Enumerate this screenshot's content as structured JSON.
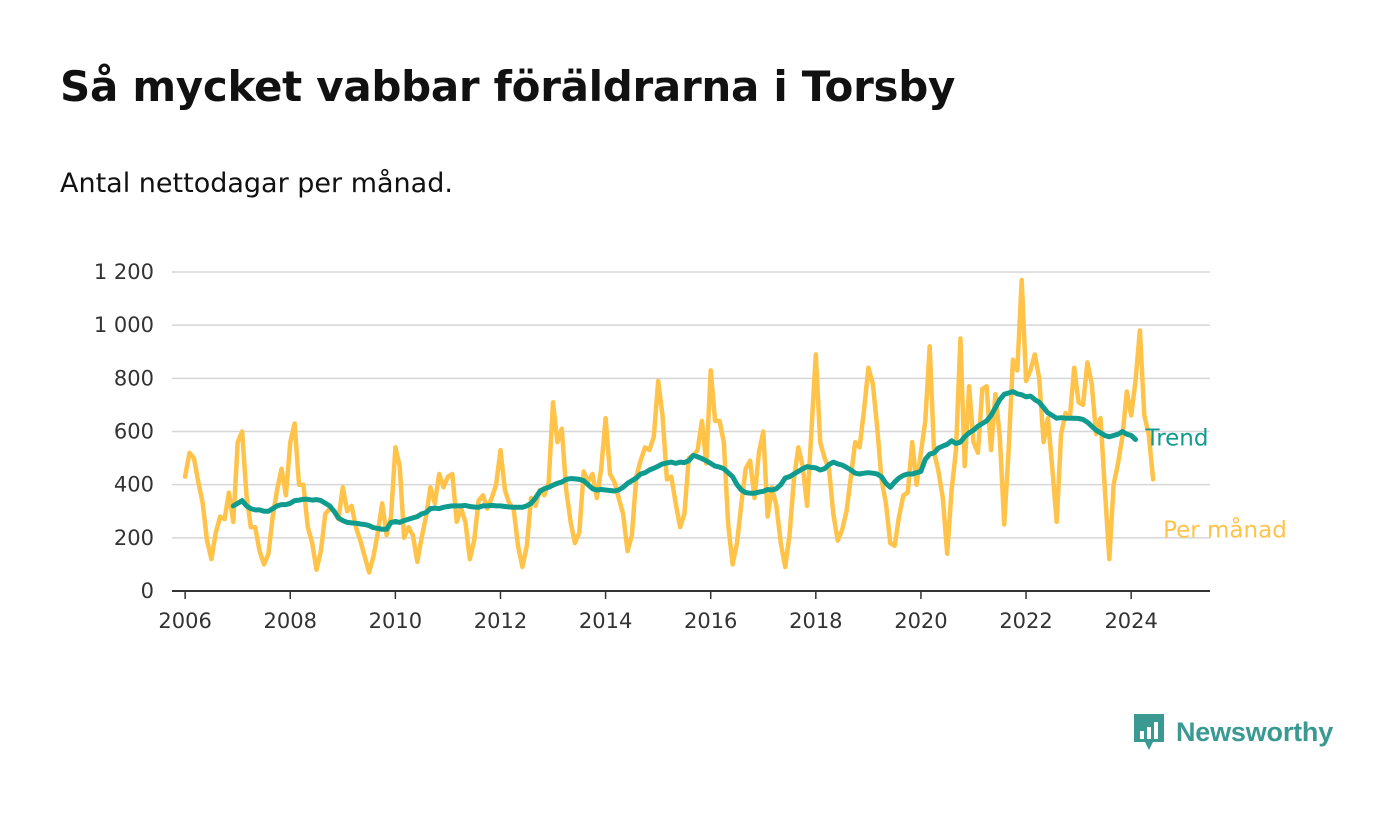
{
  "header": {
    "title": "Så mycket vabbar föräldrarna i Torsby",
    "subtitle": "Antal nettodagar per månad."
  },
  "brand": {
    "name": "Newsworthy",
    "icon": "newsworthy-logo-icon",
    "color": "#3a9a92"
  },
  "chart_data": {
    "type": "line",
    "title": "Så mycket vabbar föräldrarna i Torsby",
    "subtitle": "Antal nettodagar per månad.",
    "x_ticks": [
      "2006",
      "2008",
      "2010",
      "2012",
      "2014",
      "2016",
      "2018",
      "2020",
      "2022",
      "2024"
    ],
    "y_ticks": [
      "0",
      "200",
      "400",
      "600",
      "800",
      "1 000",
      "1 200"
    ],
    "xlim": [
      "2005-10",
      "2025-07"
    ],
    "ylim": [
      0,
      1200
    ],
    "grid": true,
    "legend": "direct labels at line ends",
    "series": [
      {
        "name": "Per månad",
        "color": "#ffc34a",
        "start": "2006-01",
        "values": [
          430,
          520,
          500,
          410,
          330,
          190,
          120,
          220,
          280,
          270,
          370,
          260,
          560,
          600,
          360,
          240,
          240,
          150,
          100,
          140,
          280,
          380,
          460,
          360,
          560,
          630,
          400,
          400,
          240,
          180,
          80,
          150,
          290,
          310,
          300,
          270,
          390,
          300,
          320,
          240,
          190,
          130,
          70,
          130,
          220,
          330,
          210,
          280,
          540,
          470,
          200,
          240,
          210,
          110,
          200,
          280,
          390,
          330,
          440,
          390,
          430,
          440,
          260,
          310,
          260,
          120,
          190,
          340,
          360,
          310,
          350,
          400,
          530,
          380,
          330,
          310,
          170,
          90,
          170,
          350,
          320,
          380,
          360,
          410,
          710,
          560,
          610,
          380,
          260,
          180,
          220,
          450,
          410,
          440,
          350,
          460,
          650,
          440,
          410,
          350,
          290,
          150,
          210,
          430,
          490,
          540,
          530,
          580,
          790,
          660,
          420,
          430,
          330,
          240,
          290,
          500,
          510,
          530,
          640,
          480,
          830,
          640,
          640,
          560,
          250,
          100,
          180,
          330,
          460,
          490,
          350,
          520,
          600,
          280,
          390,
          320,
          180,
          90,
          210,
          420,
          540,
          470,
          320,
          600,
          890,
          560,
          500,
          460,
          290,
          190,
          230,
          300,
          430,
          560,
          540,
          680,
          840,
          780,
          620,
          420,
          330,
          180,
          170,
          280,
          360,
          370,
          560,
          400,
          520,
          640,
          920,
          520,
          450,
          350,
          140,
          380,
          530,
          950,
          470,
          770,
          560,
          520,
          760,
          770,
          530,
          740,
          580,
          250,
          520,
          870,
          830,
          1170,
          790,
          830,
          890,
          800,
          560,
          650,
          460,
          260,
          590,
          670,
          650,
          840,
          710,
          700,
          860,
          780,
          590,
          650,
          380,
          120,
          400,
          480,
          580,
          750,
          660,
          790,
          980,
          660,
          590,
          420
        ]
      },
      {
        "name": "Trend",
        "color": "#0f9b8e",
        "start": "2006-12",
        "values": [
          320,
          330,
          340,
          320,
          310,
          305,
          305,
          300,
          300,
          310,
          320,
          325,
          325,
          330,
          340,
          342,
          345,
          345,
          342,
          344,
          340,
          330,
          320,
          300,
          275,
          265,
          258,
          256,
          255,
          252,
          250,
          246,
          238,
          236,
          232,
          232,
          258,
          262,
          258,
          265,
          270,
          275,
          280,
          290,
          295,
          310,
          312,
          310,
          315,
          318,
          320,
          320,
          320,
          322,
          318,
          316,
          315,
          320,
          320,
          322,
          320,
          320,
          318,
          316,
          315,
          315,
          315,
          320,
          330,
          350,
          375,
          385,
          390,
          398,
          405,
          410,
          420,
          423,
          422,
          420,
          415,
          400,
          385,
          380,
          382,
          380,
          378,
          376,
          380,
          390,
          405,
          415,
          425,
          440,
          445,
          455,
          462,
          470,
          478,
          482,
          485,
          480,
          485,
          483,
          490,
          510,
          505,
          498,
          490,
          480,
          470,
          466,
          460,
          445,
          430,
          400,
          380,
          370,
          368,
          368,
          372,
          375,
          382,
          380,
          385,
          400,
          425,
          430,
          440,
          450,
          460,
          468,
          465,
          463,
          455,
          460,
          475,
          485,
          478,
          474,
          465,
          455,
          443,
          440,
          443,
          445,
          443,
          440,
          430,
          405,
          390,
          410,
          425,
          435,
          440,
          440,
          445,
          450,
          495,
          515,
          520,
          538,
          545,
          552,
          565,
          555,
          560,
          580,
          595,
          605,
          620,
          630,
          640,
          660,
          690,
          720,
          740,
          745,
          750,
          742,
          738,
          730,
          733,
          720,
          710,
          690,
          670,
          660,
          650,
          652,
          650,
          650,
          650,
          649,
          645,
          635,
          620,
          605,
          595,
          585,
          580,
          585,
          590,
          600,
          590,
          585,
          570
        ]
      }
    ]
  }
}
